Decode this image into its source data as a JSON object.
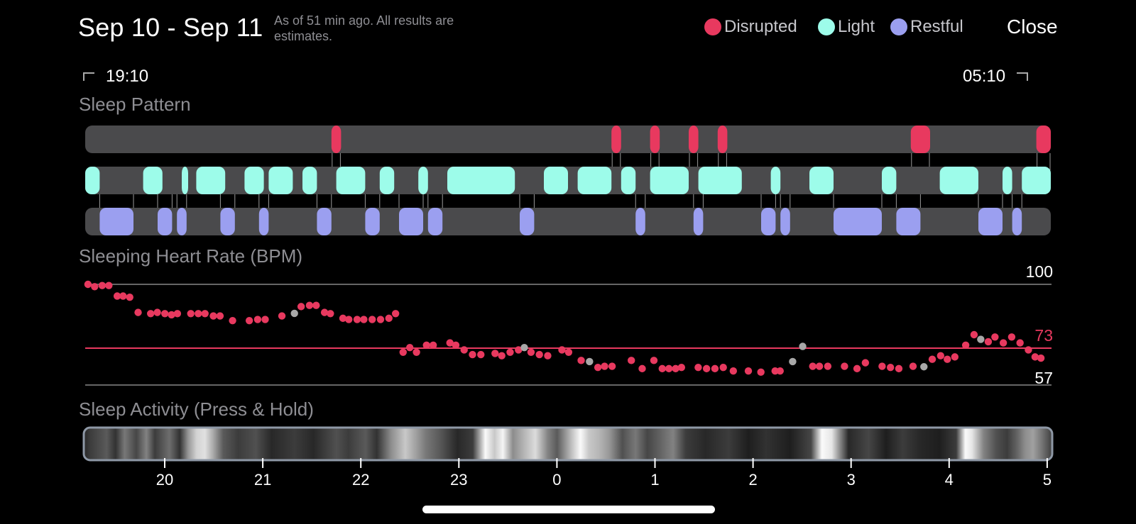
{
  "header": {
    "date_range": "Sep 10 - Sep 11",
    "as_of": "As of 51 min ago. All results are estimates.",
    "close_label": "Close"
  },
  "legend": [
    {
      "label": "Disrupted",
      "color": "#e8395f"
    },
    {
      "label": "Light",
      "color": "#9dfcea"
    },
    {
      "label": "Restful",
      "color": "#9b9ff0"
    }
  ],
  "time_range": {
    "start": "19:10",
    "end": "05:10"
  },
  "sleep_pattern": {
    "title": "Sleep Pattern",
    "colors": {
      "disrupted": "#e8395f",
      "light": "#9dfcea",
      "restful": "#9b9ff0",
      "track": "#4a4a4c"
    },
    "disrupted": [
      [
        2.55,
        2.65
      ],
      [
        5.45,
        5.55
      ],
      [
        5.85,
        5.95
      ],
      [
        6.25,
        6.35
      ],
      [
        6.55,
        6.65
      ],
      [
        8.55,
        8.75
      ],
      [
        9.85,
        10.0
      ]
    ],
    "light": [
      [
        0.0,
        0.15
      ],
      [
        0.6,
        0.8
      ],
      [
        1.0,
        1.05
      ],
      [
        1.15,
        1.45
      ],
      [
        1.65,
        1.85
      ],
      [
        1.9,
        2.15
      ],
      [
        2.25,
        2.4
      ],
      [
        2.6,
        2.9
      ],
      [
        3.05,
        3.2
      ],
      [
        3.45,
        3.55
      ],
      [
        3.75,
        4.45
      ],
      [
        4.75,
        5.0
      ],
      [
        5.1,
        5.45
      ],
      [
        5.55,
        5.7
      ],
      [
        5.85,
        6.25
      ],
      [
        6.35,
        6.8
      ],
      [
        7.1,
        7.2
      ],
      [
        7.5,
        7.75
      ],
      [
        8.25,
        8.4
      ],
      [
        8.85,
        9.25
      ],
      [
        9.5,
        9.6
      ],
      [
        9.7,
        10.0
      ]
    ],
    "restful": [
      [
        0.15,
        0.5
      ],
      [
        0.75,
        0.9
      ],
      [
        0.95,
        1.05
      ],
      [
        1.4,
        1.55
      ],
      [
        1.8,
        1.9
      ],
      [
        2.4,
        2.55
      ],
      [
        2.9,
        3.05
      ],
      [
        3.25,
        3.5
      ],
      [
        3.55,
        3.7
      ],
      [
        4.5,
        4.65
      ],
      [
        5.7,
        5.8
      ],
      [
        6.3,
        6.4
      ],
      [
        7.0,
        7.15
      ],
      [
        7.2,
        7.3
      ],
      [
        7.75,
        8.25
      ],
      [
        8.4,
        8.65
      ],
      [
        9.25,
        9.5
      ],
      [
        9.6,
        9.7
      ]
    ]
  },
  "heart_rate": {
    "title": "Sleeping Heart Rate (BPM)",
    "max_label": "100",
    "avg_label": "73",
    "min_label": "57",
    "colors": {
      "point": "#e8395f",
      "gray": "#a8a8a8",
      "avg_line": "#e8395f",
      "grid": "#666"
    },
    "chart_data": {
      "type": "scatter",
      "ylim": [
        57,
        100
      ],
      "avg": 73,
      "points": [
        [
          0.05,
          100
        ],
        [
          0.13,
          99
        ],
        [
          0.22,
          99.5
        ],
        [
          0.3,
          99.5
        ],
        [
          0.4,
          95
        ],
        [
          0.47,
          95
        ],
        [
          0.55,
          94.5
        ],
        [
          0.65,
          88
        ],
        [
          0.8,
          87.5
        ],
        [
          0.88,
          88
        ],
        [
          0.97,
          87.5
        ],
        [
          1.05,
          87
        ],
        [
          1.12,
          87.5
        ],
        [
          1.28,
          87.5
        ],
        [
          1.37,
          87.5
        ],
        [
          1.45,
          87.5
        ],
        [
          1.55,
          86.5
        ],
        [
          1.63,
          86.5
        ],
        [
          1.78,
          84.5
        ],
        [
          1.98,
          84.5
        ],
        [
          2.08,
          85
        ],
        [
          2.17,
          85
        ],
        [
          2.37,
          86.5
        ],
        [
          2.52,
          87.6,
          "gray"
        ],
        [
          2.6,
          90.5
        ],
        [
          2.7,
          91
        ],
        [
          2.78,
          91
        ],
        [
          2.88,
          88
        ],
        [
          2.95,
          87.5
        ],
        [
          3.1,
          85.5
        ],
        [
          3.17,
          85
        ],
        [
          3.27,
          85
        ],
        [
          3.35,
          85
        ],
        [
          3.45,
          85
        ],
        [
          3.55,
          85
        ],
        [
          3.65,
          85.5
        ],
        [
          3.73,
          87.5
        ],
        [
          3.82,
          71
        ],
        [
          3.9,
          73
        ],
        [
          3.98,
          71
        ],
        [
          4.1,
          74
        ],
        [
          4.18,
          74
        ],
        [
          4.38,
          75
        ],
        [
          4.45,
          74
        ],
        [
          4.55,
          72
        ],
        [
          4.65,
          70
        ],
        [
          4.75,
          70
        ],
        [
          4.92,
          70.5
        ],
        [
          5.0,
          69.5
        ],
        [
          5.1,
          71
        ],
        [
          5.2,
          72
        ],
        [
          5.27,
          73,
          "gray"
        ],
        [
          5.35,
          71
        ],
        [
          5.45,
          70
        ],
        [
          5.55,
          69.5
        ],
        [
          5.72,
          72
        ],
        [
          5.8,
          71
        ],
        [
          5.95,
          67.5
        ],
        [
          6.05,
          67,
          "gray"
        ],
        [
          6.15,
          64.5
        ],
        [
          6.23,
          65
        ],
        [
          6.32,
          65
        ],
        [
          6.55,
          67.5
        ],
        [
          6.68,
          64
        ],
        [
          6.82,
          67.5
        ],
        [
          6.92,
          64
        ],
        [
          7.0,
          64
        ],
        [
          7.08,
          64
        ],
        [
          7.15,
          64.5
        ],
        [
          7.35,
          64.5
        ],
        [
          7.45,
          64
        ],
        [
          7.55,
          64
        ],
        [
          7.65,
          64.5
        ],
        [
          7.77,
          63
        ],
        [
          7.95,
          63
        ],
        [
          8.1,
          62.5
        ],
        [
          8.27,
          63
        ],
        [
          8.33,
          63
        ],
        [
          8.48,
          67,
          "gray"
        ],
        [
          8.6,
          73.5,
          "gray"
        ],
        [
          8.72,
          65
        ],
        [
          8.8,
          65
        ],
        [
          8.9,
          65
        ],
        [
          9.1,
          65
        ],
        [
          9.25,
          64
        ],
        [
          9.35,
          66.5
        ],
        [
          9.55,
          65
        ],
        [
          9.65,
          64.5
        ],
        [
          9.75,
          64
        ],
        [
          9.92,
          65
        ],
        [
          10.05,
          64.8,
          "gray"
        ],
        [
          10.15,
          68
        ],
        [
          10.25,
          69.5
        ],
        [
          10.33,
          68
        ],
        [
          10.42,
          69
        ],
        [
          10.55,
          74
        ],
        [
          10.65,
          78.5
        ],
        [
          10.73,
          76.5,
          "gray"
        ],
        [
          10.82,
          75.5
        ],
        [
          10.9,
          77.5
        ],
        [
          11.0,
          75
        ],
        [
          11.1,
          77.5
        ],
        [
          11.2,
          75
        ],
        [
          11.3,
          72
        ],
        [
          11.38,
          69
        ],
        [
          11.45,
          68.5
        ]
      ]
    }
  },
  "sleep_activity": {
    "title": "Sleep Activity (Press & Hold)",
    "bands": [
      [
        0.0,
        0.15,
        60
      ],
      [
        0.2,
        0.15,
        90
      ],
      [
        0.32,
        0.12,
        50
      ],
      [
        0.45,
        0.08,
        120
      ],
      [
        0.58,
        0.1,
        70
      ],
      [
        0.7,
        0.1,
        130
      ],
      [
        0.8,
        0.1,
        60
      ],
      [
        0.95,
        0.15,
        110
      ],
      [
        1.1,
        0.1,
        50
      ],
      [
        1.2,
        0.1,
        150
      ],
      [
        1.3,
        0.1,
        210
      ],
      [
        1.4,
        0.1,
        225
      ],
      [
        1.5,
        0.1,
        170
      ],
      [
        1.62,
        0.1,
        90
      ],
      [
        1.8,
        0.1,
        60
      ],
      [
        2.0,
        0.12,
        80
      ],
      [
        2.2,
        0.1,
        40
      ],
      [
        2.45,
        0.15,
        60
      ],
      [
        2.7,
        0.1,
        40
      ],
      [
        2.95,
        0.15,
        80
      ],
      [
        3.12,
        0.1,
        60
      ],
      [
        3.3,
        0.15,
        90
      ],
      [
        3.45,
        0.12,
        50
      ],
      [
        3.62,
        0.12,
        140
      ],
      [
        3.8,
        0.1,
        200
      ],
      [
        3.92,
        0.12,
        160
      ],
      [
        4.05,
        0.1,
        120
      ],
      [
        4.2,
        0.12,
        90
      ],
      [
        4.4,
        0.15,
        40
      ],
      [
        4.6,
        0.12,
        60
      ],
      [
        4.75,
        0.12,
        250
      ],
      [
        4.88,
        0.08,
        200
      ],
      [
        4.97,
        0.1,
        245
      ],
      [
        5.08,
        0.12,
        140
      ],
      [
        5.22,
        0.1,
        180
      ],
      [
        5.35,
        0.12,
        220
      ],
      [
        5.5,
        0.12,
        130
      ],
      [
        5.62,
        0.1,
        90
      ],
      [
        5.78,
        0.12,
        190
      ],
      [
        5.9,
        0.1,
        250
      ],
      [
        6.0,
        0.1,
        200
      ],
      [
        6.12,
        0.12,
        180
      ],
      [
        6.25,
        0.1,
        150
      ],
      [
        6.4,
        0.1,
        80
      ],
      [
        6.55,
        0.12,
        120
      ],
      [
        6.7,
        0.1,
        70
      ],
      [
        6.85,
        0.12,
        100
      ],
      [
        7.0,
        0.12,
        130
      ],
      [
        7.15,
        0.12,
        60
      ],
      [
        7.4,
        0.1,
        40
      ],
      [
        7.65,
        0.15,
        60
      ],
      [
        7.9,
        0.12,
        30
      ],
      [
        8.1,
        0.15,
        50
      ],
      [
        8.4,
        0.12,
        30
      ],
      [
        8.65,
        0.12,
        70
      ],
      [
        8.78,
        0.12,
        250
      ],
      [
        8.92,
        0.08,
        230
      ],
      [
        9.1,
        0.12,
        40
      ],
      [
        9.35,
        0.1,
        70
      ],
      [
        9.55,
        0.12,
        30
      ],
      [
        9.75,
        0.12,
        60
      ],
      [
        9.95,
        0.12,
        40
      ],
      [
        10.2,
        0.1,
        30
      ],
      [
        10.4,
        0.1,
        60
      ],
      [
        10.5,
        0.12,
        250
      ],
      [
        10.6,
        0.08,
        230
      ],
      [
        10.72,
        0.12,
        130
      ],
      [
        10.88,
        0.1,
        80
      ],
      [
        11.0,
        0.12,
        60
      ],
      [
        11.12,
        0.12,
        100
      ],
      [
        11.22,
        0.1,
        140
      ],
      [
        11.32,
        0.1,
        160
      ],
      [
        11.42,
        0.1,
        120
      ]
    ]
  },
  "axis": {
    "ticks": [
      "20",
      "21",
      "22",
      "23",
      "0",
      "1",
      "2",
      "3",
      "4",
      "5"
    ]
  }
}
